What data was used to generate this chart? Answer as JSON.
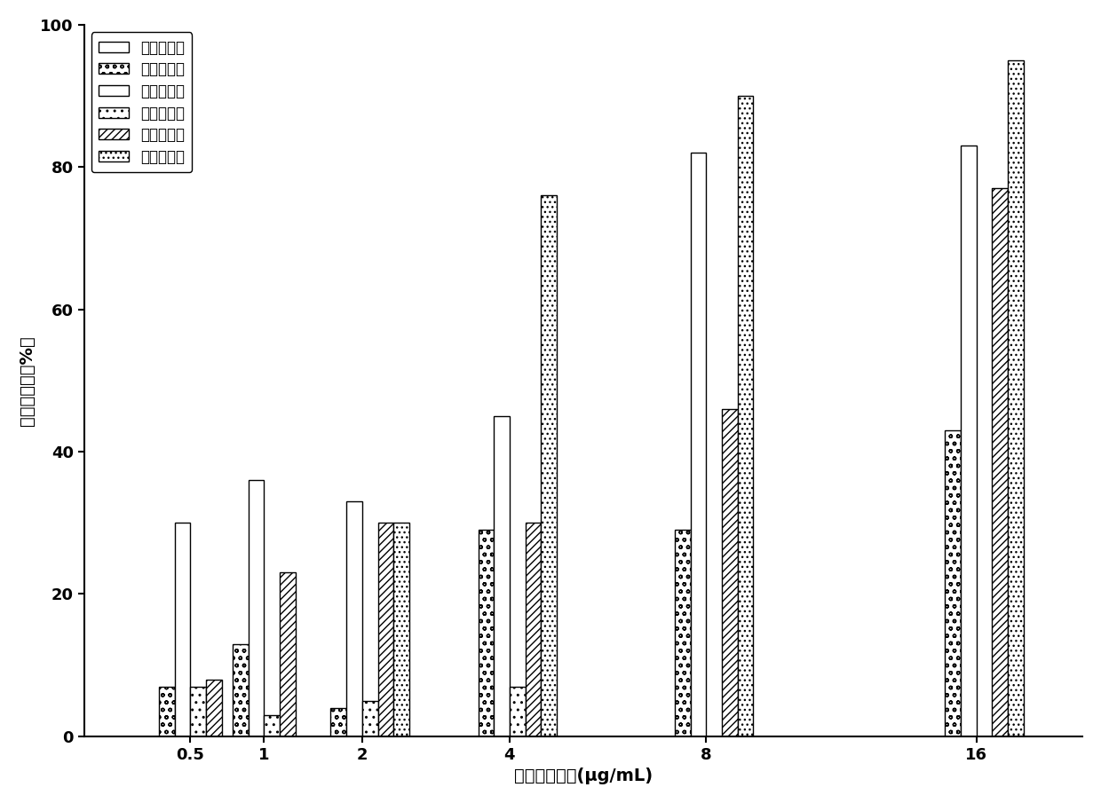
{
  "concentrations_labels": [
    "0.5",
    "1",
    "2",
    "4",
    "8",
    "16"
  ],
  "series": [
    {
      "name": "强壮前沟藻",
      "values": [
        0,
        0,
        0,
        0,
        0,
        0
      ],
      "hatch": ""
    },
    {
      "name": "赤潮异弯藻",
      "values": [
        7,
        13,
        4,
        29,
        29,
        43
      ],
      "hatch": "oo"
    },
    {
      "name": "米氏凯伦藻",
      "values": [
        30,
        36,
        33,
        45,
        82,
        83
      ],
      "hatch": "==="
    },
    {
      "name": "球形樿蕢藻",
      "values": [
        7,
        3,
        5,
        7,
        0,
        0
      ],
      "hatch": ".."
    },
    {
      "name": "东海原甲藻",
      "values": [
        8,
        23,
        30,
        30,
        46,
        77
      ],
      "hatch": "////"
    },
    {
      "name": "中肿骨条藻",
      "values": [
        0,
        0,
        30,
        76,
        90,
        95
      ],
      "hatch": "..."
    }
  ],
  "xlabel": "重著酸销浓度(μg/mL)",
  "ylabel": "生长抑制率（%）",
  "ylim": [
    0,
    100
  ],
  "yticks": [
    0,
    20,
    40,
    60,
    80,
    100
  ],
  "axis_fontsize": 14,
  "legend_fontsize": 12,
  "tick_fontsize": 13
}
